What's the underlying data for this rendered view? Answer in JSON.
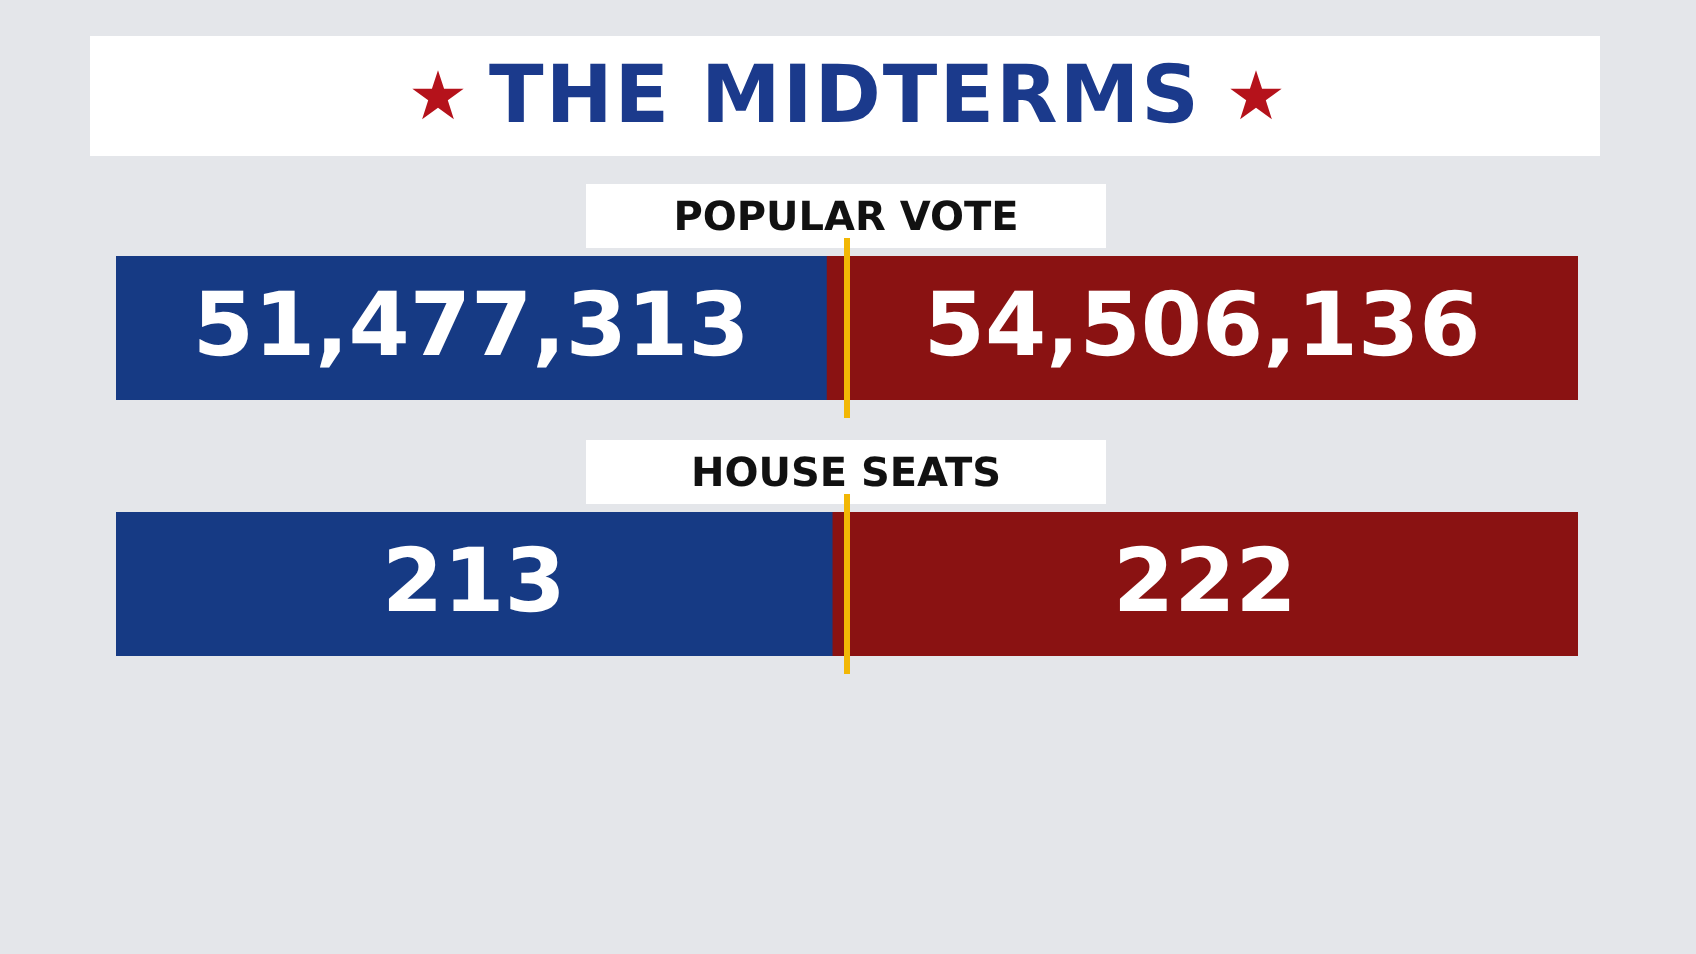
{
  "chart_data": [
    {
      "type": "bar",
      "title": "THE MIDTERMS",
      "subtitle": "POPULAR VOTE",
      "orientation": "horizontal",
      "stacked": true,
      "categories": [
        null
      ],
      "tick_labels": false,
      "series": [
        {
          "color": "#163a84",
          "values": [
            51477313
          ],
          "value_labels": [
            "51,477,313"
          ]
        },
        {
          "color": "#8a1212",
          "values": [
            54506136
          ],
          "value_labels": [
            "54,506,136"
          ]
        }
      ]
    },
    {
      "type": "bar",
      "title": "HOUSE SEATS",
      "orientation": "horizontal",
      "stacked": true,
      "categories": [
        null
      ],
      "tick_labels": false,
      "data_labels": true,
      "series": [
        {
          "color": "#163a84",
          "values": [
            213
          ]
        },
        {
          "color": "#8a1212",
          "values": [
            222
          ]
        }
      ]
    }
  ]
}
